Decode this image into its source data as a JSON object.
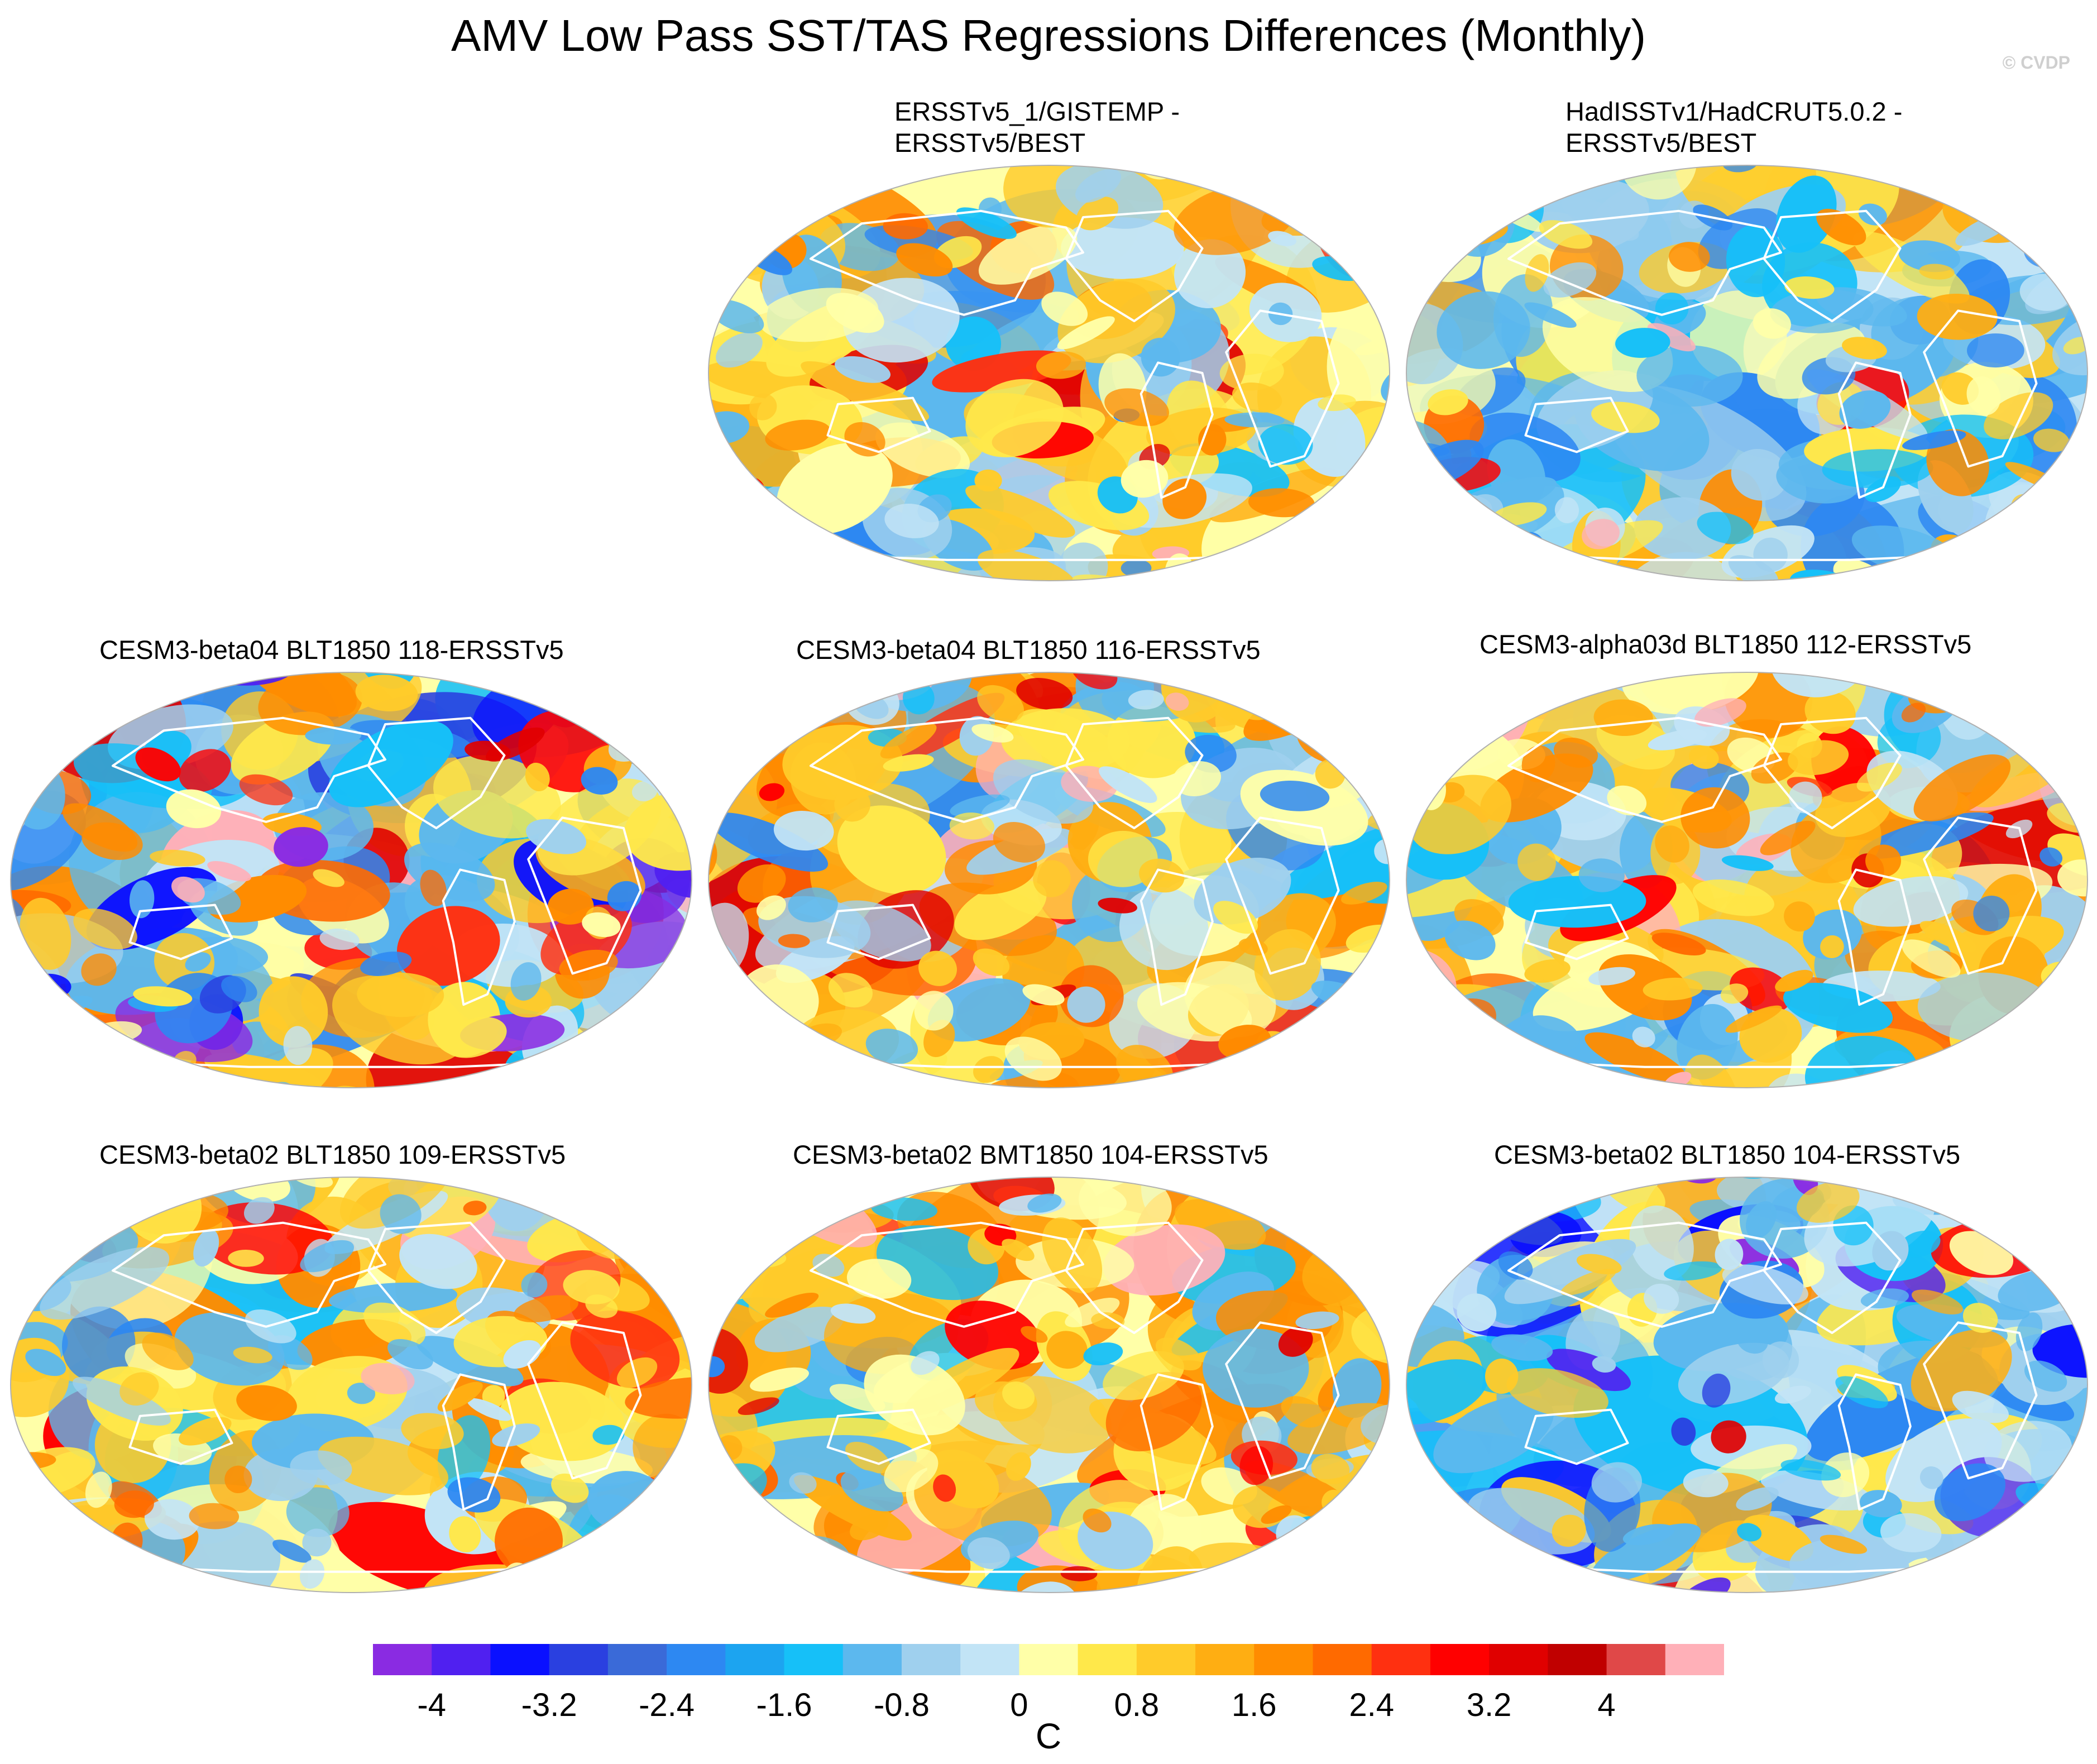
{
  "title": "AMV Low Pass SST/TAS Regressions Differences (Monthly)",
  "credit": "© CVDP",
  "panels": [
    {
      "id": "p1",
      "title_line1": "ERSSTv5_1/GISTEMP -",
      "title_line2": "ERSSTv5/BEST",
      "dominant": "mixed-light",
      "seed": 11
    },
    {
      "id": "p2",
      "title_line1": "HadISSTv1/HadCRUT5.0.2 -",
      "title_line2": "ERSSTv5/BEST",
      "dominant": "mixed-blue",
      "seed": 23
    },
    {
      "id": "p3",
      "title_line1": "CESM3-beta04 BLT1850 118-ERSSTv5",
      "title_line2": "",
      "dominant": "strong-mixed",
      "seed": 37
    },
    {
      "id": "p4",
      "title_line1": "CESM3-beta04 BLT1850 116-ERSSTv5",
      "title_line2": "",
      "dominant": "warm",
      "seed": 41
    },
    {
      "id": "p5",
      "title_line1": "CESM3-alpha03d BLT1850 112-ERSSTv5",
      "title_line2": "",
      "dominant": "warm",
      "seed": 53
    },
    {
      "id": "p6",
      "title_line1": "CESM3-beta02 BLT1850 109-ERSSTv5",
      "title_line2": "",
      "dominant": "warm",
      "seed": 67
    },
    {
      "id": "p7",
      "title_line1": "CESM3-beta02 BMT1850 104-ERSSTv5",
      "title_line2": "",
      "dominant": "warm",
      "seed": 71
    },
    {
      "id": "p8",
      "title_line1": "CESM3-beta02 BLT1850 104-ERSSTv5",
      "title_line2": "",
      "dominant": "cool",
      "seed": 83
    }
  ],
  "colorbar": {
    "colors": [
      "#8a2be2",
      "#5020f0",
      "#0a10ff",
      "#2a40e0",
      "#3a6ad8",
      "#2d88f2",
      "#1ca4f0",
      "#16c0f8",
      "#5cb8ee",
      "#9fd0ee",
      "#c2e4f6",
      "#ffffa8",
      "#ffe84a",
      "#ffcb2a",
      "#ffae12",
      "#ff8c00",
      "#ff6a00",
      "#ff3010",
      "#ff0000",
      "#e00000",
      "#c00000",
      "#e04848",
      "#ffb0b8"
    ],
    "tick_labels": [
      "-4",
      "-3.2",
      "-2.4",
      "-1.6",
      "-0.8",
      "0",
      "0.8",
      "1.6",
      "2.4",
      "3.2",
      "4"
    ],
    "units": "C"
  }
}
